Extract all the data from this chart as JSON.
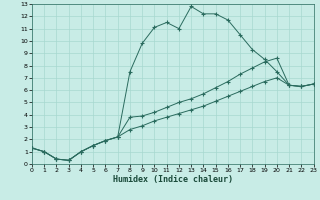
{
  "xlabel": "Humidex (Indice chaleur)",
  "background_color": "#c8ece6",
  "grid_color": "#a8d8d0",
  "line_color": "#2a6b5e",
  "xlim": [
    0,
    23
  ],
  "ylim": [
    0,
    13
  ],
  "xticks": [
    0,
    1,
    2,
    3,
    4,
    5,
    6,
    7,
    8,
    9,
    10,
    11,
    12,
    13,
    14,
    15,
    16,
    17,
    18,
    19,
    20,
    21,
    22,
    23
  ],
  "yticks": [
    0,
    1,
    2,
    3,
    4,
    5,
    6,
    7,
    8,
    9,
    10,
    11,
    12,
    13
  ],
  "line1_x": [
    0,
    1,
    2,
    3,
    4,
    5,
    6,
    7,
    8,
    9,
    10,
    11,
    12,
    13,
    14,
    15,
    16,
    17,
    18,
    19,
    20,
    21,
    22,
    23
  ],
  "line1_y": [
    1.3,
    1.0,
    0.4,
    0.3,
    1.0,
    1.5,
    1.9,
    2.2,
    7.5,
    9.8,
    11.1,
    11.5,
    11.0,
    12.8,
    12.2,
    12.2,
    11.7,
    10.5,
    9.3,
    8.5,
    7.5,
    6.4,
    6.3,
    6.5
  ],
  "line2_x": [
    0,
    1,
    2,
    3,
    4,
    5,
    6,
    7,
    8,
    9,
    10,
    11,
    12,
    13,
    14,
    15,
    16,
    17,
    18,
    19,
    20,
    21,
    22,
    23
  ],
  "line2_y": [
    1.3,
    1.0,
    0.4,
    0.3,
    1.0,
    1.5,
    1.9,
    2.2,
    3.8,
    3.9,
    4.2,
    4.6,
    5.0,
    5.3,
    5.7,
    6.2,
    6.7,
    7.3,
    7.8,
    8.3,
    8.6,
    6.4,
    6.3,
    6.5
  ],
  "line3_x": [
    0,
    1,
    2,
    3,
    4,
    5,
    6,
    7,
    8,
    9,
    10,
    11,
    12,
    13,
    14,
    15,
    16,
    17,
    18,
    19,
    20,
    21,
    22,
    23
  ],
  "line3_y": [
    1.3,
    1.0,
    0.4,
    0.3,
    1.0,
    1.5,
    1.9,
    2.2,
    2.8,
    3.1,
    3.5,
    3.8,
    4.1,
    4.4,
    4.7,
    5.1,
    5.5,
    5.9,
    6.3,
    6.7,
    7.0,
    6.4,
    6.3,
    6.5
  ]
}
